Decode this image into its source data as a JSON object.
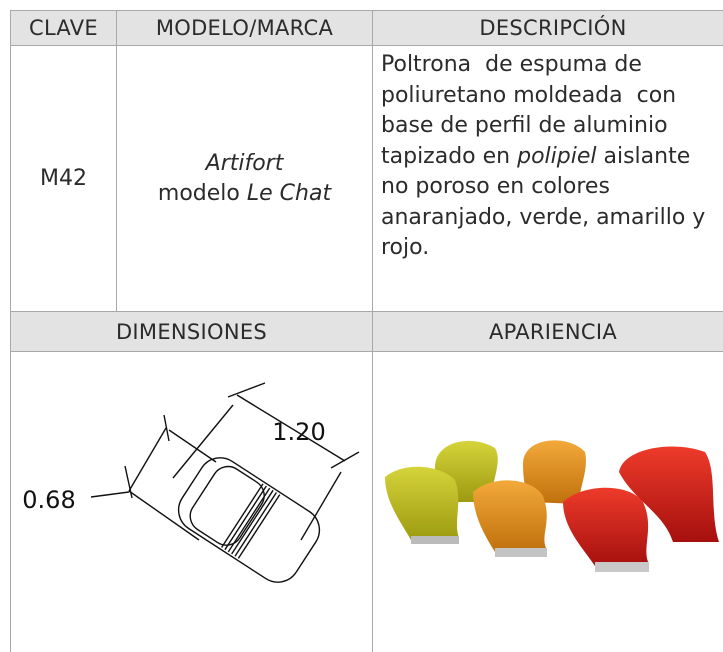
{
  "header": {
    "clave": "CLAVE",
    "modelo": "MODELO/MARCA",
    "descripcion": "DESCRIPCIÓN"
  },
  "row": {
    "clave": "M42",
    "marca": "Artifort",
    "modelo_prefix": "modelo ",
    "modelo": "Le Chat",
    "description": [
      "Poltrona  de espuma de",
      "poliuretano moldeada  con",
      "base de perfil de aluminio",
      {
        "before": "tapizado en ",
        "italic": "polipiel",
        "after": " aislante"
      },
      "no poroso en colores",
      "anaranjado, verde, amarillo y",
      "rojo."
    ]
  },
  "section": {
    "dimensiones": "DIMENSIONES",
    "apariencia": "APARIENCIA"
  },
  "drawing": {
    "length": "1.20",
    "width": "0.68"
  }
}
